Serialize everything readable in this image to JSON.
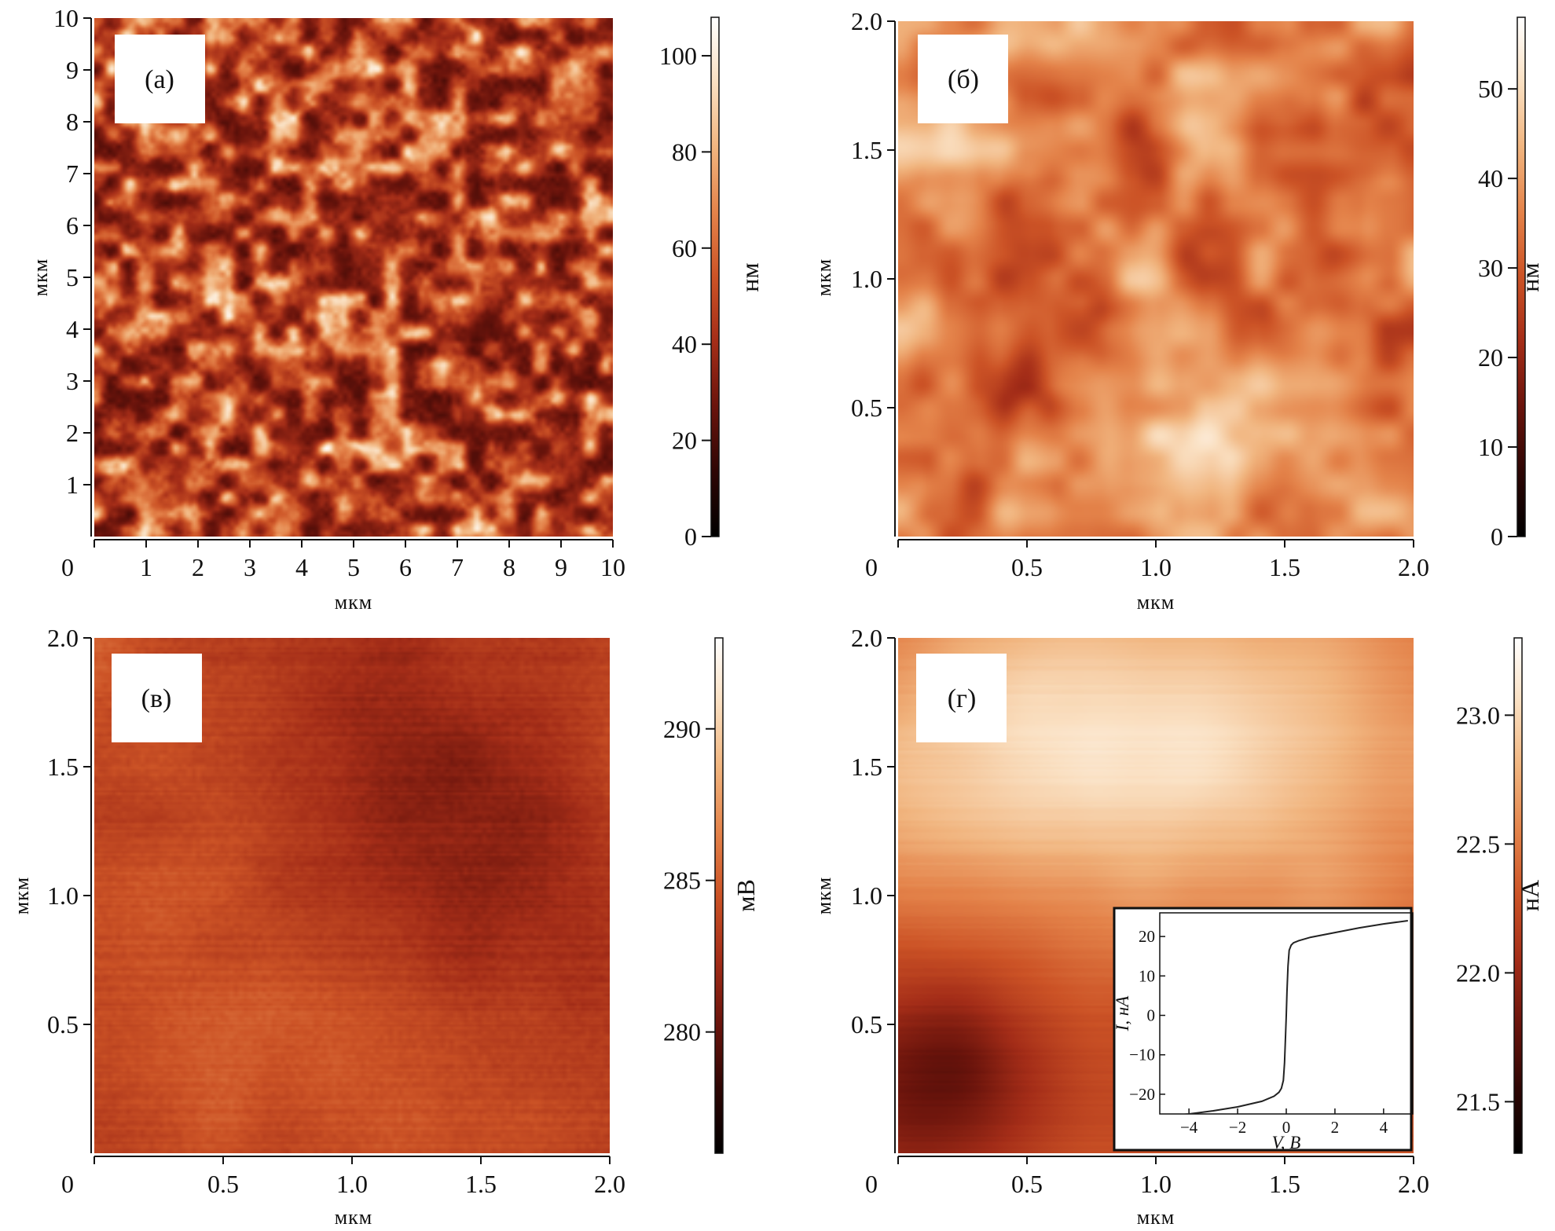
{
  "colors": {
    "cmap": [
      "#000000",
      "#2e0604",
      "#6a140c",
      "#a42d18",
      "#cc5326",
      "#e4834a",
      "#f1b57f",
      "#fae0c2",
      "#ffffff"
    ]
  },
  "panels": [
    {
      "id": "a",
      "label": "(а)",
      "axis_label": "мкм",
      "x_ticks": [
        {
          "v": 0,
          "t": "0"
        },
        {
          "v": 1,
          "t": "1"
        },
        {
          "v": 2,
          "t": "2"
        },
        {
          "v": 3,
          "t": "3"
        },
        {
          "v": 4,
          "t": "4"
        },
        {
          "v": 5,
          "t": "5"
        },
        {
          "v": 6,
          "t": "6"
        },
        {
          "v": 7,
          "t": "7"
        },
        {
          "v": 8,
          "t": "8"
        },
        {
          "v": 9,
          "t": "9"
        },
        {
          "v": 10,
          "t": "10"
        }
      ],
      "y_ticks": [
        {
          "v": 1,
          "t": "1"
        },
        {
          "v": 2,
          "t": "2"
        },
        {
          "v": 3,
          "t": "3"
        },
        {
          "v": 4,
          "t": "4"
        },
        {
          "v": 5,
          "t": "5"
        },
        {
          "v": 6,
          "t": "6"
        },
        {
          "v": 7,
          "t": "7"
        },
        {
          "v": 8,
          "t": "8"
        },
        {
          "v": 9,
          "t": "9"
        },
        {
          "v": 10,
          "t": "10"
        }
      ],
      "range": [
        0,
        10
      ],
      "colorbar": {
        "unit": "нм",
        "range": [
          0,
          108
        ],
        "ticks": [
          {
            "v": 0,
            "t": "0"
          },
          {
            "v": 20,
            "t": "20"
          },
          {
            "v": 40,
            "t": "40"
          },
          {
            "v": 60,
            "t": "60"
          },
          {
            "v": 80,
            "t": "80"
          },
          {
            "v": 100,
            "t": "100"
          }
        ]
      }
    },
    {
      "id": "b",
      "label": "(б)",
      "axis_label": "мкм",
      "x_ticks": [
        {
          "v": 0,
          "t": "0"
        },
        {
          "v": 0.5,
          "t": "0.5"
        },
        {
          "v": 1.0,
          "t": "1.0"
        },
        {
          "v": 1.5,
          "t": "1.5"
        },
        {
          "v": 2.0,
          "t": "2.0"
        }
      ],
      "y_ticks": [
        {
          "v": 0.5,
          "t": "0.5"
        },
        {
          "v": 1.0,
          "t": "1.0"
        },
        {
          "v": 1.5,
          "t": "1.5"
        },
        {
          "v": 2.0,
          "t": "2.0"
        }
      ],
      "range": [
        0,
        2
      ],
      "colorbar": {
        "unit": "нм",
        "range": [
          0,
          58
        ],
        "ticks": [
          {
            "v": 0,
            "t": "0"
          },
          {
            "v": 10,
            "t": "10"
          },
          {
            "v": 20,
            "t": "20"
          },
          {
            "v": 30,
            "t": "30"
          },
          {
            "v": 40,
            "t": "40"
          },
          {
            "v": 50,
            "t": "50"
          }
        ]
      }
    },
    {
      "id": "c",
      "label": "(в)",
      "axis_label": "мкм",
      "x_ticks": [
        {
          "v": 0,
          "t": "0"
        },
        {
          "v": 0.5,
          "t": "0.5"
        },
        {
          "v": 1.0,
          "t": "1.0"
        },
        {
          "v": 1.5,
          "t": "1.5"
        },
        {
          "v": 2.0,
          "t": "2.0"
        }
      ],
      "y_ticks": [
        {
          "v": 0.5,
          "t": "0.5"
        },
        {
          "v": 1.0,
          "t": "1.0"
        },
        {
          "v": 1.5,
          "t": "1.5"
        },
        {
          "v": 2.0,
          "t": "2.0"
        }
      ],
      "range": [
        0,
        2
      ],
      "colorbar": {
        "unit": "мВ",
        "range": [
          276,
          293
        ],
        "ticks": [
          {
            "v": 280,
            "t": "280"
          },
          {
            "v": 285,
            "t": "285"
          },
          {
            "v": 290,
            "t": "290"
          }
        ]
      }
    },
    {
      "id": "d",
      "label": "(г)",
      "axis_label": "мкм",
      "x_ticks": [
        {
          "v": 0,
          "t": "0"
        },
        {
          "v": 0.5,
          "t": "0.5"
        },
        {
          "v": 1.0,
          "t": "1.0"
        },
        {
          "v": 1.5,
          "t": "1.5"
        },
        {
          "v": 2.0,
          "t": "2.0"
        }
      ],
      "y_ticks": [
        {
          "v": 0.5,
          "t": "0.5"
        },
        {
          "v": 1.0,
          "t": "1.0"
        },
        {
          "v": 1.5,
          "t": "1.5"
        },
        {
          "v": 2.0,
          "t": "2.0"
        }
      ],
      "range": [
        0,
        2
      ],
      "colorbar": {
        "unit": "нА",
        "range": [
          21.3,
          23.3
        ],
        "ticks": [
          {
            "v": 21.5,
            "t": "21.5"
          },
          {
            "v": 22.0,
            "t": "22.0"
          },
          {
            "v": 22.5,
            "t": "22.5"
          },
          {
            "v": 23.0,
            "t": "23.0"
          }
        ]
      }
    }
  ],
  "inset": {
    "xlabel": "V, В",
    "ylabel": "I, нА",
    "x_ticks": [
      {
        "v": -4,
        "t": "−4"
      },
      {
        "v": -2,
        "t": "−2"
      },
      {
        "v": 0,
        "t": "0"
      },
      {
        "v": 2,
        "t": "2"
      },
      {
        "v": 4,
        "t": "4"
      }
    ],
    "y_ticks": [
      {
        "v": -20,
        "t": "−20"
      },
      {
        "v": -10,
        "t": "−10"
      },
      {
        "v": 0,
        "t": "0"
      },
      {
        "v": 10,
        "t": "10"
      },
      {
        "v": 20,
        "t": "20"
      }
    ],
    "xlim": [
      -5.2,
      5.2
    ],
    "ylim": [
      -25,
      26
    ]
  },
  "chart_data": {
    "type": "line",
    "title": "",
    "xlabel": "V, В",
    "ylabel": "I, нА",
    "xlim": [
      -5.2,
      5.2
    ],
    "ylim": [
      -25,
      26
    ],
    "series": [
      {
        "name": "I-V",
        "x": [
          -5.0,
          -4.0,
          -3.0,
          -2.0,
          -1.0,
          -0.5,
          -0.3,
          -0.2,
          -0.12,
          -0.07,
          -0.03,
          0.0,
          0.03,
          0.07,
          0.12,
          0.2,
          0.3,
          0.5,
          1.0,
          2.0,
          3.0,
          4.0,
          5.0
        ],
        "y": [
          -25.5,
          -25.0,
          -24.2,
          -23.2,
          -21.8,
          -20.5,
          -19.5,
          -18.5,
          -16.5,
          -12.0,
          -5.0,
          0.0,
          6.0,
          12.5,
          16.5,
          17.8,
          18.4,
          18.9,
          19.8,
          21.0,
          22.2,
          23.2,
          24.0
        ]
      }
    ]
  }
}
